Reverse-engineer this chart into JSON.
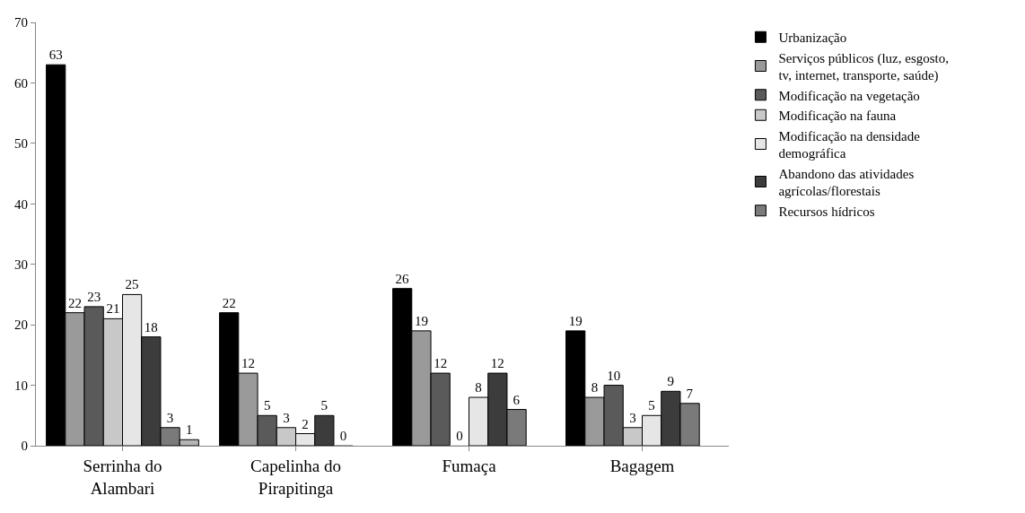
{
  "chart_data": {
    "type": "bar",
    "categories": [
      "Serrinha do Alambari",
      "Capelinha do Pirapitinga",
      "Fumaça",
      "Bagagem"
    ],
    "series": [
      {
        "name": "Urbanização",
        "color": "#000000",
        "values": [
          63,
          22,
          26,
          19
        ]
      },
      {
        "name": "Serviços públicos (luz, esgosto, tv, internet, transporte, saúde)",
        "color": "#9a9a9a",
        "values": [
          22,
          12,
          19,
          8
        ]
      },
      {
        "name": "Modificação na vegetação",
        "color": "#5a5a5a",
        "values": [
          23,
          5,
          12,
          10
        ]
      },
      {
        "name": "Modificação na fauna",
        "color": "#c8c8c8",
        "values": [
          21,
          3,
          0,
          3
        ]
      },
      {
        "name": "Modificação na densidade demográfica",
        "color": "#e6e6e6",
        "values": [
          25,
          2,
          8,
          5
        ]
      },
      {
        "name": "Abandono das atividades agrícolas/florestais",
        "color": "#3c3c3c",
        "values": [
          18,
          5,
          12,
          9
        ]
      },
      {
        "name": "Recursos hídricos",
        "color": "#7a7a7a",
        "values": [
          3,
          0,
          6,
          7
        ]
      },
      {
        "color": "#b4b4b4",
        "values": [
          1,
          null,
          null,
          null
        ]
      }
    ],
    "ylim": [
      0,
      70
    ],
    "yticks": [
      0,
      10,
      20,
      30,
      40,
      50,
      60,
      70
    ],
    "data_labels": true,
    "legend": "right"
  }
}
